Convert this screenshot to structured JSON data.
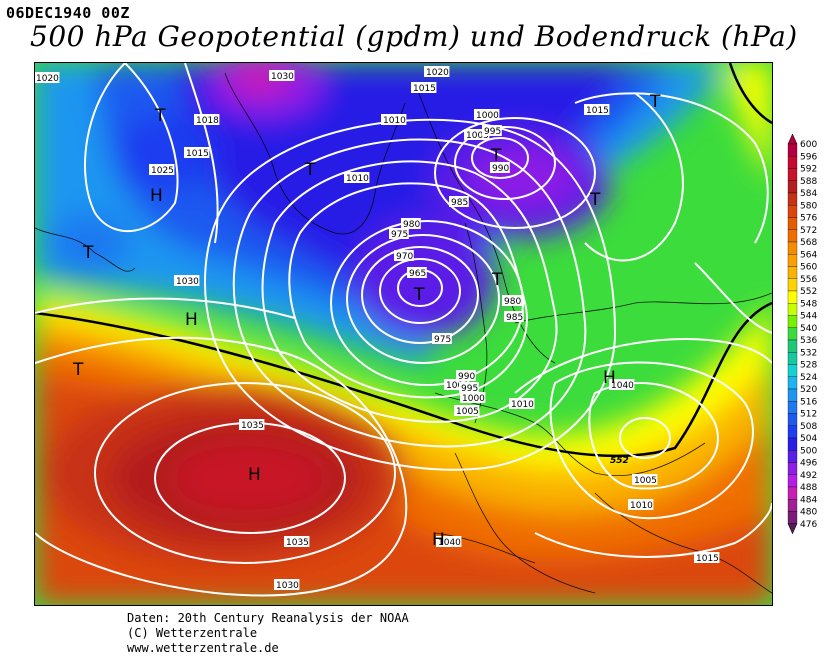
{
  "header": {
    "date": "06DEC1940 00Z",
    "title": "500 hPa Geopotential (gpdm) und Bodendruck (hPa)"
  },
  "legend": {
    "values": [
      "600",
      "596",
      "592",
      "588",
      "584",
      "580",
      "576",
      "572",
      "568",
      "564",
      "560",
      "556",
      "552",
      "548",
      "544",
      "540",
      "536",
      "532",
      "528",
      "524",
      "520",
      "516",
      "512",
      "508",
      "504",
      "500",
      "496",
      "492",
      "488",
      "484",
      "480",
      "476"
    ],
    "colors": [
      "#b4003c",
      "#c80a32",
      "#c81428",
      "#b41e1e",
      "#c83214",
      "#dc460a",
      "#e65a00",
      "#f06e00",
      "#f58c00",
      "#faa000",
      "#fab400",
      "#ffd200",
      "#ffff00",
      "#c8ff00",
      "#78f000",
      "#3cdc3c",
      "#1ec878",
      "#14c8a0",
      "#14d2d2",
      "#1eb4f0",
      "#1e96f0",
      "#1e78f0",
      "#1e5af0",
      "#1e3cf0",
      "#281ee6",
      "#5a1ee6",
      "#8c1ee6",
      "#b41ee6",
      "#c81eb4",
      "#a01e96",
      "#781e78",
      "#501e50"
    ]
  },
  "pressure_labels": [
    "1020",
    "1015",
    "1010",
    "1005",
    "1000",
    "995",
    "990",
    "985",
    "980",
    "975",
    "970",
    "965",
    "1018",
    "1025",
    "1030",
    "1035",
    "1040",
    "1000",
    "1005",
    "1010",
    "1015",
    "1020",
    "1030",
    "1035",
    "1030",
    "1040",
    "1005",
    "1010",
    "1015",
    "980",
    "985",
    "975",
    "990",
    "995",
    "1000",
    "1005",
    "1010",
    "1015"
  ],
  "centers": [
    "H",
    "H",
    "H",
    "H",
    "H",
    "T",
    "T",
    "T",
    "T",
    "T",
    "T",
    "T",
    "T",
    "T"
  ],
  "contour_label": "552",
  "footer": {
    "line1": "Daten: 20th Century Reanalysis der NOAA",
    "line2": "(C) Wetterzentrale",
    "line3": "www.wetterzentrale.de"
  }
}
